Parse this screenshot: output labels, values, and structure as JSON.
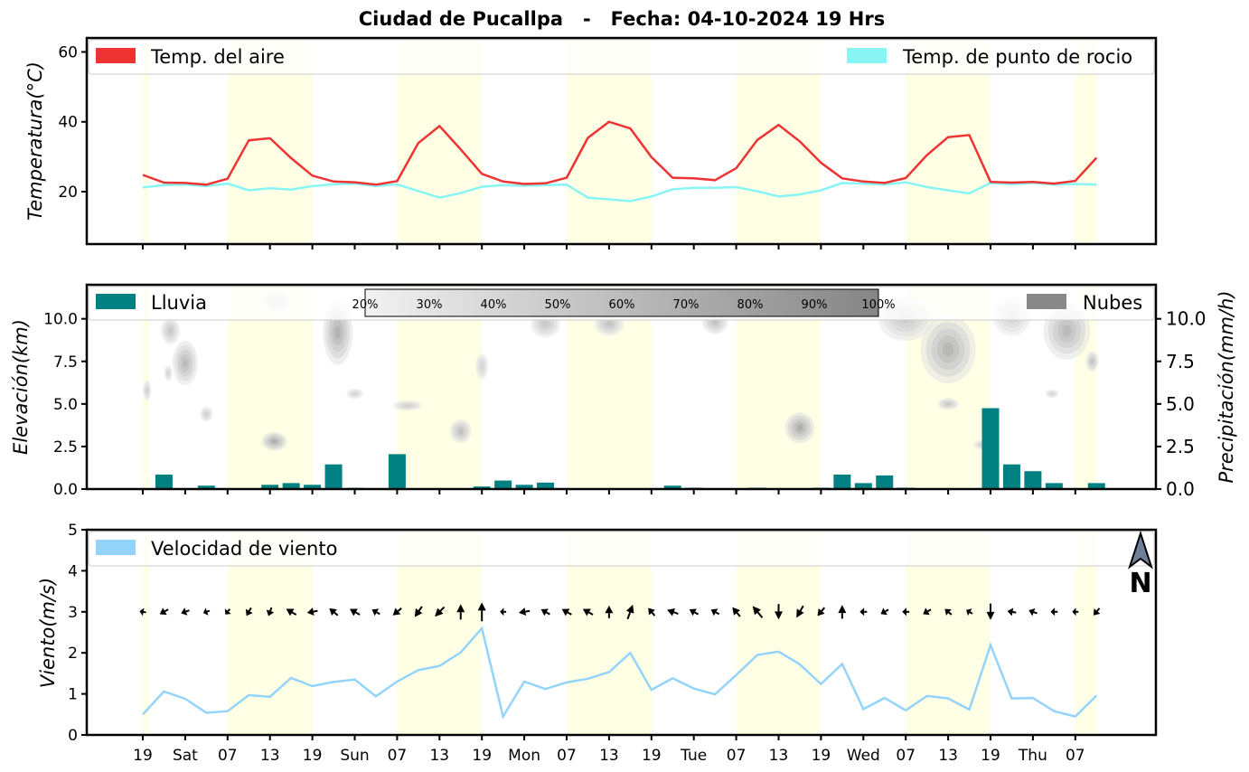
{
  "chart_data": {
    "title": "Ciudad de Pucallpa   -   Fecha: 04-10-2024 19 Hrs",
    "x_tick_labels": [
      "19",
      "Sat",
      "07",
      "13",
      "19",
      "Sun",
      "07",
      "13",
      "19",
      "Mon",
      "07",
      "13",
      "19",
      "Tue",
      "07",
      "13",
      "19",
      "Wed",
      "07",
      "13",
      "19",
      "Thu",
      "07"
    ],
    "daylight_bands": [
      [
        0,
        0.3
      ],
      [
        4,
        8
      ],
      [
        12,
        16
      ],
      [
        20,
        24
      ],
      [
        28,
        32
      ],
      [
        36,
        40
      ],
      [
        44,
        45
      ]
    ],
    "temperature_panel": {
      "type": "line",
      "ylabel": "Temperatura(°C)",
      "ylim": [
        5,
        64
      ],
      "yticks": [
        "20",
        "40",
        "60"
      ],
      "legend": [
        {
          "label": "Temp. del aire",
          "color": "#ee3333"
        },
        {
          "label": "Temp. de punto de rocio",
          "color": "#88f4f4"
        }
      ],
      "series": [
        {
          "name": "Temp. del aire",
          "color": "#ee3333",
          "values": [
            24.8,
            22.6,
            22.5,
            22.0,
            23.7,
            34.7,
            35.3,
            29.6,
            24.6,
            22.9,
            22.7,
            22.0,
            23.0,
            33.9,
            38.8,
            32.1,
            25.1,
            22.9,
            22.2,
            22.4,
            24.0,
            35.4,
            40.0,
            38.1,
            29.9,
            24.0,
            23.8,
            23.3,
            26.7,
            34.8,
            39.1,
            34.4,
            28.3,
            23.8,
            22.9,
            22.5,
            23.9,
            30.5,
            35.6,
            36.2,
            22.8,
            22.6,
            22.8,
            22.3,
            23.1,
            29.7
          ]
        },
        {
          "name": "Temp. de punto de rocio",
          "color": "#88f4f4",
          "values": [
            21.2,
            21.9,
            22.0,
            21.6,
            22.3,
            20.4,
            21.0,
            20.6,
            21.6,
            22.1,
            22.3,
            21.6,
            22.1,
            20.2,
            18.3,
            19.6,
            21.4,
            21.9,
            21.7,
            21.9,
            22.0,
            18.3,
            17.8,
            17.3,
            18.6,
            20.7,
            21.1,
            21.1,
            21.3,
            20.1,
            18.6,
            19.2,
            20.4,
            22.5,
            22.3,
            22.0,
            22.7,
            21.3,
            20.4,
            19.5,
            22.5,
            22.1,
            22.5,
            22.0,
            22.2,
            22.0
          ]
        }
      ]
    },
    "precip_panel": {
      "type": "bar",
      "ylabel_left": "Elevación(km)",
      "ylabel_right": "Precipitación(mm/h)",
      "ylim": [
        0,
        12
      ],
      "yticks_left": [
        "0.0",
        "2.5",
        "5.0",
        "7.5",
        "10.0"
      ],
      "yticks_right": [
        "0.0",
        "2.5",
        "5.0",
        "7.5",
        "10.0"
      ],
      "legend": [
        {
          "label": "Lluvia",
          "color": "#008080"
        },
        {
          "label": "Nubes",
          "color": "#888888"
        }
      ],
      "colorbar_labels": [
        "20%",
        "30%",
        "40%",
        "50%",
        "60%",
        "70%",
        "80%",
        "90%",
        "100%"
      ],
      "series": [
        {
          "name": "Lluvia",
          "color": "#008080",
          "values": [
            0,
            0.85,
            0.05,
            0.2,
            0.05,
            0.05,
            0.25,
            0.35,
            0.25,
            1.45,
            0.07,
            0.05,
            2.05,
            0.02,
            0.02,
            0.02,
            0.15,
            0.5,
            0.25,
            0.38,
            0.02,
            0.03,
            0.03,
            0.03,
            0.03,
            0.2,
            0.08,
            0.02,
            0.02,
            0.08,
            0.02,
            0.02,
            0.08,
            0.85,
            0.35,
            0.8,
            0.08,
            0.02,
            0.02,
            0.02,
            4.75,
            1.45,
            1.05,
            0.35,
            0.02,
            0.35
          ]
        }
      ],
      "clouds": [
        {
          "x": 1.3,
          "y": 9.3,
          "w": 0.9,
          "h": 1.6,
          "density": 0.45
        },
        {
          "x": 2.0,
          "y": 7.4,
          "w": 1.2,
          "h": 2.6,
          "density": 0.6
        },
        {
          "x": 3.0,
          "y": 4.4,
          "w": 0.6,
          "h": 0.9,
          "density": 0.35
        },
        {
          "x": 0.2,
          "y": 5.8,
          "w": 0.4,
          "h": 1.2,
          "density": 0.35
        },
        {
          "x": 1.2,
          "y": 6.8,
          "w": 0.4,
          "h": 0.9,
          "density": 0.3
        },
        {
          "x": 6.2,
          "y": 2.8,
          "w": 1.2,
          "h": 1.1,
          "density": 0.75
        },
        {
          "x": 9.2,
          "y": 9.2,
          "w": 1.4,
          "h": 3.8,
          "density": 0.7
        },
        {
          "x": 6.3,
          "y": 11.0,
          "w": 1.5,
          "h": 1.4,
          "density": 0.3
        },
        {
          "x": 10.0,
          "y": 5.6,
          "w": 0.8,
          "h": 0.6,
          "density": 0.3
        },
        {
          "x": 12.5,
          "y": 4.9,
          "w": 1.4,
          "h": 0.6,
          "density": 0.35
        },
        {
          "x": 15.0,
          "y": 3.4,
          "w": 1.0,
          "h": 1.4,
          "density": 0.55
        },
        {
          "x": 16.0,
          "y": 7.2,
          "w": 0.6,
          "h": 1.5,
          "density": 0.3
        },
        {
          "x": 19.0,
          "y": 9.7,
          "w": 1.4,
          "h": 1.6,
          "density": 0.45
        },
        {
          "x": 22.0,
          "y": 9.7,
          "w": 1.4,
          "h": 1.4,
          "density": 0.5
        },
        {
          "x": 27.0,
          "y": 9.8,
          "w": 1.2,
          "h": 1.4,
          "density": 0.5
        },
        {
          "x": 31.0,
          "y": 3.6,
          "w": 1.4,
          "h": 1.8,
          "density": 0.75
        },
        {
          "x": 36.0,
          "y": 10.0,
          "w": 2.6,
          "h": 2.6,
          "density": 0.4
        },
        {
          "x": 38.0,
          "y": 8.2,
          "w": 2.6,
          "h": 4.0,
          "density": 0.65
        },
        {
          "x": 38.0,
          "y": 5.0,
          "w": 1.0,
          "h": 0.7,
          "density": 0.45
        },
        {
          "x": 41.0,
          "y": 10.2,
          "w": 1.8,
          "h": 2.4,
          "density": 0.35
        },
        {
          "x": 43.6,
          "y": 9.3,
          "w": 2.2,
          "h": 3.4,
          "density": 0.6
        },
        {
          "x": 44.8,
          "y": 7.5,
          "w": 0.6,
          "h": 1.2,
          "density": 0.5
        },
        {
          "x": 39.6,
          "y": 2.6,
          "w": 0.8,
          "h": 0.6,
          "density": 0.35
        },
        {
          "x": 42.9,
          "y": 5.6,
          "w": 0.6,
          "h": 0.5,
          "density": 0.3
        }
      ]
    },
    "wind_panel": {
      "type": "line",
      "ylabel": "Viento(m/s)",
      "ylim": [
        0,
        5
      ],
      "yticks": [
        "0",
        "1",
        "2",
        "3",
        "4",
        "5"
      ],
      "legend": [
        {
          "label": "Velocidad de viento",
          "color": "#94d4fa"
        }
      ],
      "series": [
        {
          "name": "Velocidad de viento",
          "color": "#94d4fa",
          "values": [
            0.5,
            1.06,
            0.88,
            0.54,
            0.58,
            0.97,
            0.93,
            1.39,
            1.19,
            1.29,
            1.35,
            0.94,
            1.3,
            1.58,
            1.68,
            2.01,
            2.6,
            0.45,
            1.3,
            1.12,
            1.28,
            1.37,
            1.53,
            2.0,
            1.1,
            1.38,
            1.13,
            0.99,
            1.46,
            1.95,
            2.03,
            1.72,
            1.24,
            1.73,
            0.63,
            0.9,
            0.6,
            0.95,
            0.89,
            0.62,
            2.19,
            0.89,
            0.9,
            0.58,
            0.45,
            0.96
          ]
        }
      ],
      "wind_direction_deg": [
        280,
        240,
        250,
        250,
        220,
        210,
        200,
        300,
        260,
        310,
        300,
        300,
        230,
        215,
        225,
        0,
        0,
        270,
        260,
        300,
        300,
        300,
        0,
        20,
        320,
        290,
        300,
        300,
        320,
        320,
        180,
        210,
        220,
        0,
        270,
        240,
        270,
        240,
        310,
        300,
        180,
        280,
        290,
        270,
        270,
        220
      ],
      "north_label": "N"
    }
  }
}
